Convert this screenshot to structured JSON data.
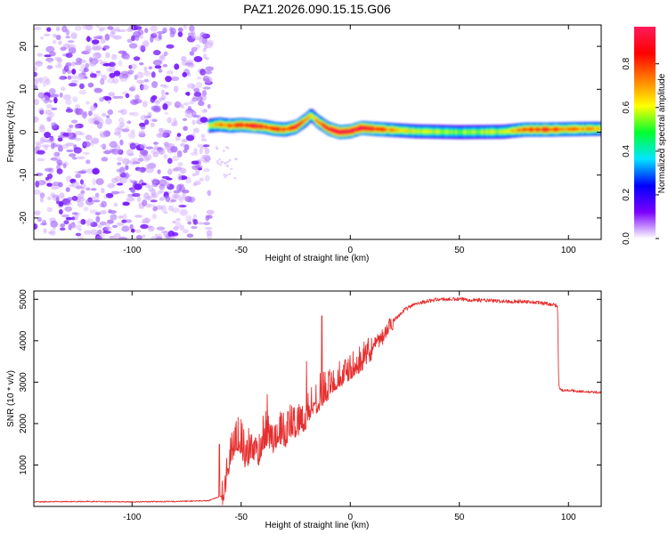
{
  "title": "PAZ1.2026.090.15.15.G06",
  "colors": {
    "snr_line": "#e62e2e",
    "frame": "#000000",
    "background": "#ffffff"
  },
  "chart_data": [
    {
      "type": "heatmap",
      "name": "spectrogram",
      "xlabel": "Height of straight line (km)",
      "ylabel": "Frequency (Hz)",
      "xlim": [
        -145,
        115
      ],
      "ylim": [
        -25,
        25
      ],
      "x_ticks": [
        -100,
        -50,
        0,
        50,
        100
      ],
      "x_tick_labels": [
        "-100",
        "-50",
        "0",
        "50",
        "100"
      ],
      "y_ticks": [
        -20,
        -10,
        0,
        10,
        20
      ],
      "y_tick_labels": [
        "-20",
        "-10",
        "0",
        "10",
        "20"
      ],
      "noise_region": {
        "x_range": [
          -145,
          -64
        ],
        "y_range": [
          -25,
          25
        ],
        "typical_amplitude": 0.2
      },
      "ridge": {
        "x": [
          -65,
          -60,
          -55,
          -50,
          -45,
          -40,
          -35,
          -30,
          -25,
          -20,
          -18,
          -15,
          -10,
          -5,
          0,
          5,
          10,
          20,
          30,
          50,
          70,
          80,
          90,
          100,
          115
        ],
        "freq": [
          1.5,
          1.8,
          1.5,
          1.7,
          1.5,
          1.3,
          0.8,
          0.6,
          1.2,
          3.0,
          4.0,
          2.5,
          0.8,
          0.0,
          0.2,
          1.0,
          0.8,
          0.5,
          0.2,
          0.0,
          0.1,
          0.6,
          0.6,
          0.7,
          0.8
        ],
        "peak_amplitude": [
          0.55,
          0.75,
          0.8,
          0.85,
          0.9,
          0.85,
          0.8,
          0.85,
          0.9,
          0.75,
          0.6,
          0.8,
          0.9,
          1.0,
          1.0,
          0.95,
          0.9,
          0.7,
          0.6,
          0.55,
          0.6,
          0.8,
          0.85,
          0.75,
          0.7
        ],
        "width_hz": 3.2
      },
      "colorbar": {
        "label": "Normalized spectral amplitude",
        "range": [
          0.0,
          0.97
        ],
        "ticks": [
          0.0,
          0.2,
          0.4,
          0.6,
          0.8
        ],
        "tick_labels": [
          "0.0",
          "0.2",
          "0.4",
          "0.6",
          "0.8"
        ],
        "colormap": [
          "#ffffff",
          "#7a00ff",
          "#0000ff",
          "#00e5ff",
          "#00ff30",
          "#ffff00",
          "#ff7f00",
          "#ff0000",
          "#ff1a5a"
        ]
      }
    },
    {
      "type": "line",
      "name": "snr",
      "xlabel": "Height of straight line (km)",
      "ylabel": "SNR (10 * v/v)",
      "xlim": [
        -145,
        115
      ],
      "ylim": [
        0,
        5200
      ],
      "x_ticks": [
        -100,
        -50,
        0,
        50,
        100
      ],
      "x_tick_labels": [
        "-100",
        "-50",
        "0",
        "50",
        "100"
      ],
      "y_ticks": [
        1000,
        2000,
        3000,
        4000,
        5000
      ],
      "y_tick_labels": [
        "1000",
        "2000",
        "3000",
        "4000",
        "5000"
      ],
      "series": [
        {
          "name": "SNR",
          "x": [
            -145,
            -120,
            -100,
            -80,
            -65,
            -59,
            -57,
            -55,
            -52,
            -50,
            -48,
            -45,
            -42,
            -40,
            -38,
            -35,
            -33,
            -30,
            -28,
            -25,
            -20,
            -18,
            -15,
            -12,
            -10,
            -8,
            -5,
            0,
            5,
            10,
            15,
            20,
            25,
            30,
            35,
            40,
            50,
            60,
            70,
            80,
            90,
            95,
            95.5,
            96,
            97,
            100,
            105,
            110,
            115
          ],
          "y": [
            110,
            120,
            110,
            120,
            140,
            250,
            700,
            1300,
            1700,
            1600,
            1200,
            1500,
            1300,
            1700,
            1800,
            1600,
            1900,
            1700,
            2000,
            2000,
            2200,
            2500,
            2600,
            2800,
            2900,
            3000,
            3100,
            3300,
            3500,
            3800,
            4100,
            4500,
            4750,
            4900,
            4950,
            5000,
            5000,
            4980,
            4950,
            4950,
            4900,
            4850,
            3000,
            2850,
            2800,
            2800,
            2780,
            2760,
            2750
          ],
          "spikes": [
            {
              "x": -60,
              "y": 1500
            },
            {
              "x": -50,
              "y": 2100
            },
            {
              "x": -38,
              "y": 2700
            },
            {
              "x": -20,
              "y": 3500
            },
            {
              "x": -13,
              "y": 4600
            },
            {
              "x": -5,
              "y": 3500
            }
          ]
        }
      ]
    }
  ]
}
